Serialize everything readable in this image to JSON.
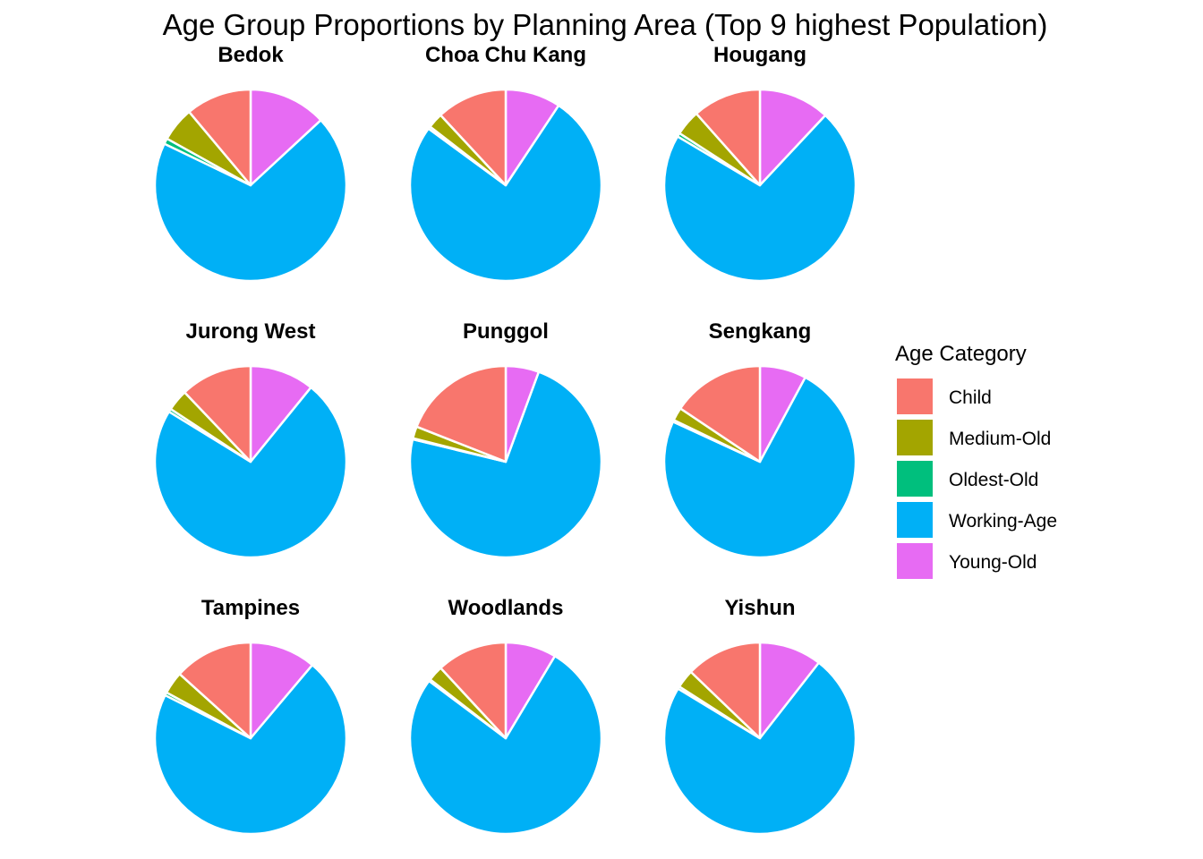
{
  "chart_data": {
    "type": "pie",
    "title": "Age Group Proportions by Planning Area (Top 9 highest Population)",
    "legend": {
      "title": "Age Category",
      "placement": "right",
      "entries": [
        "Child",
        "Medium-Old",
        "Oldest-Old",
        "Working-Age",
        "Young-Old"
      ]
    },
    "colors": {
      "Child": "#F8766D",
      "Medium-Old": "#A3A500",
      "Oldest-Old": "#00BF7D",
      "Working-Age": "#00B0F6",
      "Young-Old": "#E76BF3"
    },
    "slice_order": [
      "Young-Old",
      "Working-Age",
      "Oldest-Old",
      "Medium-Old",
      "Child"
    ],
    "facets": [
      {
        "name": "Bedok",
        "values": {
          "Young-Old": 0.124,
          "Working-Age": 0.653,
          "Oldest-Old": 0.009,
          "Medium-Old": 0.055,
          "Child": 0.105
        }
      },
      {
        "name": "Choa Chu Kang",
        "values": {
          "Young-Old": 0.09,
          "Working-Age": 0.731,
          "Oldest-Old": 0.004,
          "Medium-Old": 0.025,
          "Child": 0.115
        }
      },
      {
        "name": "Hougang",
        "values": {
          "Young-Old": 0.114,
          "Working-Age": 0.681,
          "Oldest-Old": 0.006,
          "Medium-Old": 0.041,
          "Child": 0.11
        }
      },
      {
        "name": "Jurong West",
        "values": {
          "Young-Old": 0.105,
          "Working-Age": 0.705,
          "Oldest-Old": 0.005,
          "Medium-Old": 0.035,
          "Child": 0.117
        }
      },
      {
        "name": "Punggol",
        "values": {
          "Young-Old": 0.056,
          "Working-Age": 0.73,
          "Oldest-Old": 0.002,
          "Medium-Old": 0.02,
          "Child": 0.19
        }
      },
      {
        "name": "Sengkang",
        "values": {
          "Young-Old": 0.078,
          "Working-Age": 0.735,
          "Oldest-Old": 0.003,
          "Medium-Old": 0.022,
          "Child": 0.155
        }
      },
      {
        "name": "Tampines",
        "values": {
          "Young-Old": 0.109,
          "Working-Age": 0.697,
          "Oldest-Old": 0.005,
          "Medium-Old": 0.037,
          "Child": 0.13
        }
      },
      {
        "name": "Woodlands",
        "values": {
          "Young-Old": 0.083,
          "Working-Age": 0.741,
          "Oldest-Old": 0.003,
          "Medium-Old": 0.025,
          "Child": 0.115
        }
      },
      {
        "name": "Yishun",
        "values": {
          "Young-Old": 0.102,
          "Working-Age": 0.707,
          "Oldest-Old": 0.004,
          "Medium-Old": 0.03,
          "Child": 0.124
        }
      }
    ]
  }
}
